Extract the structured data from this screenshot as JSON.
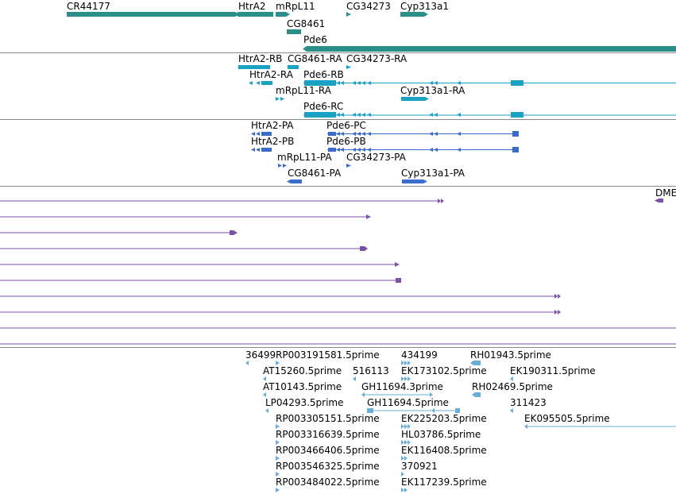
{
  "colors": {
    "gene": "#2a8f8a",
    "mrna": "#1aa2c4",
    "protein": "#3a6ccc",
    "alignment": "#7b52a8",
    "est": "#6aaed6",
    "divider": "#8a8a8a"
  },
  "tracks": {
    "genes": {
      "labels": [
        {
          "id": "cr44177",
          "text": "CR44177"
        },
        {
          "id": "htra2",
          "text": "HtrA2"
        },
        {
          "id": "mrpl11",
          "text": "mRpL11"
        },
        {
          "id": "cg34273",
          "text": "CG34273"
        },
        {
          "id": "cyp313a1",
          "text": "Cyp313a1"
        },
        {
          "id": "cg8461",
          "text": "CG8461"
        },
        {
          "id": "pde6",
          "text": "Pde6"
        }
      ]
    },
    "transcripts": {
      "labels": [
        {
          "id": "htra2-rb",
          "text": "HtrA2-RB"
        },
        {
          "id": "cg8461-ra",
          "text": "CG8461-RA"
        },
        {
          "id": "cg34273-ra",
          "text": "CG34273-RA"
        },
        {
          "id": "htra2-ra",
          "text": "HtrA2-RA"
        },
        {
          "id": "pde6-rb",
          "text": "Pde6-RB"
        },
        {
          "id": "mrpl11-ra",
          "text": "mRpL11-RA"
        },
        {
          "id": "cyp313a1-ra",
          "text": "Cyp313a1-RA"
        },
        {
          "id": "pde6-rc",
          "text": "Pde6-RC"
        }
      ]
    },
    "proteins": {
      "labels": [
        {
          "id": "htra2-pa",
          "text": "HtrA2-PA"
        },
        {
          "id": "pde6-pc",
          "text": "Pde6-PC"
        },
        {
          "id": "htra2-pb",
          "text": "HtrA2-PB"
        },
        {
          "id": "pde6-pb",
          "text": "Pde6-PB"
        },
        {
          "id": "mrpl11-pa",
          "text": "mRpL11-PA"
        },
        {
          "id": "cg34273-pa",
          "text": "CG34273-PA"
        },
        {
          "id": "cg8461-pa",
          "text": "CG8461-PA"
        },
        {
          "id": "cyp313a1-pa",
          "text": "Cyp313a1-PA"
        }
      ]
    },
    "alignments": {
      "labels": [
        {
          "id": "dme",
          "text": "DME"
        }
      ]
    },
    "ests": {
      "labels": [
        {
          "id": "est-36499",
          "text": "36499"
        },
        {
          "id": "est-rp003191581",
          "text": "RP003191581.5prime"
        },
        {
          "id": "est-434199",
          "text": "434199"
        },
        {
          "id": "est-rh01943",
          "text": "RH01943.5prime"
        },
        {
          "id": "est-at15260",
          "text": "AT15260.5prime"
        },
        {
          "id": "est-516113",
          "text": "516113"
        },
        {
          "id": "est-ek173102",
          "text": "EK173102.5prime"
        },
        {
          "id": "est-ek190311",
          "text": "EK190311.5prime"
        },
        {
          "id": "est-at10143",
          "text": "AT10143.5prime"
        },
        {
          "id": "est-gh11694-3",
          "text": "GH11694.3prime"
        },
        {
          "id": "est-rh02469",
          "text": "RH02469.5prime"
        },
        {
          "id": "est-lp04293",
          "text": "LP04293.5prime"
        },
        {
          "id": "est-gh11694-5",
          "text": "GH11694.5prime"
        },
        {
          "id": "est-311423",
          "text": "311423"
        },
        {
          "id": "est-rp003305151",
          "text": "RP003305151.5prime"
        },
        {
          "id": "est-ek225203",
          "text": "EK225203.5prime"
        },
        {
          "id": "est-ek095505",
          "text": "EK095505.5prime"
        },
        {
          "id": "est-rp003316639",
          "text": "RP003316639.5prime"
        },
        {
          "id": "est-hl03786",
          "text": "HL03786.5prime"
        },
        {
          "id": "est-rp003466406",
          "text": "RP003466406.5prime"
        },
        {
          "id": "est-ek116408",
          "text": "EK116408.5prime"
        },
        {
          "id": "est-rp003546325",
          "text": "RP003546325.5prime"
        },
        {
          "id": "est-370921",
          "text": "370921"
        },
        {
          "id": "est-rp003484022",
          "text": "RP003484022.5prime"
        },
        {
          "id": "est-ek117239",
          "text": "EK117239.5prime"
        }
      ]
    }
  }
}
